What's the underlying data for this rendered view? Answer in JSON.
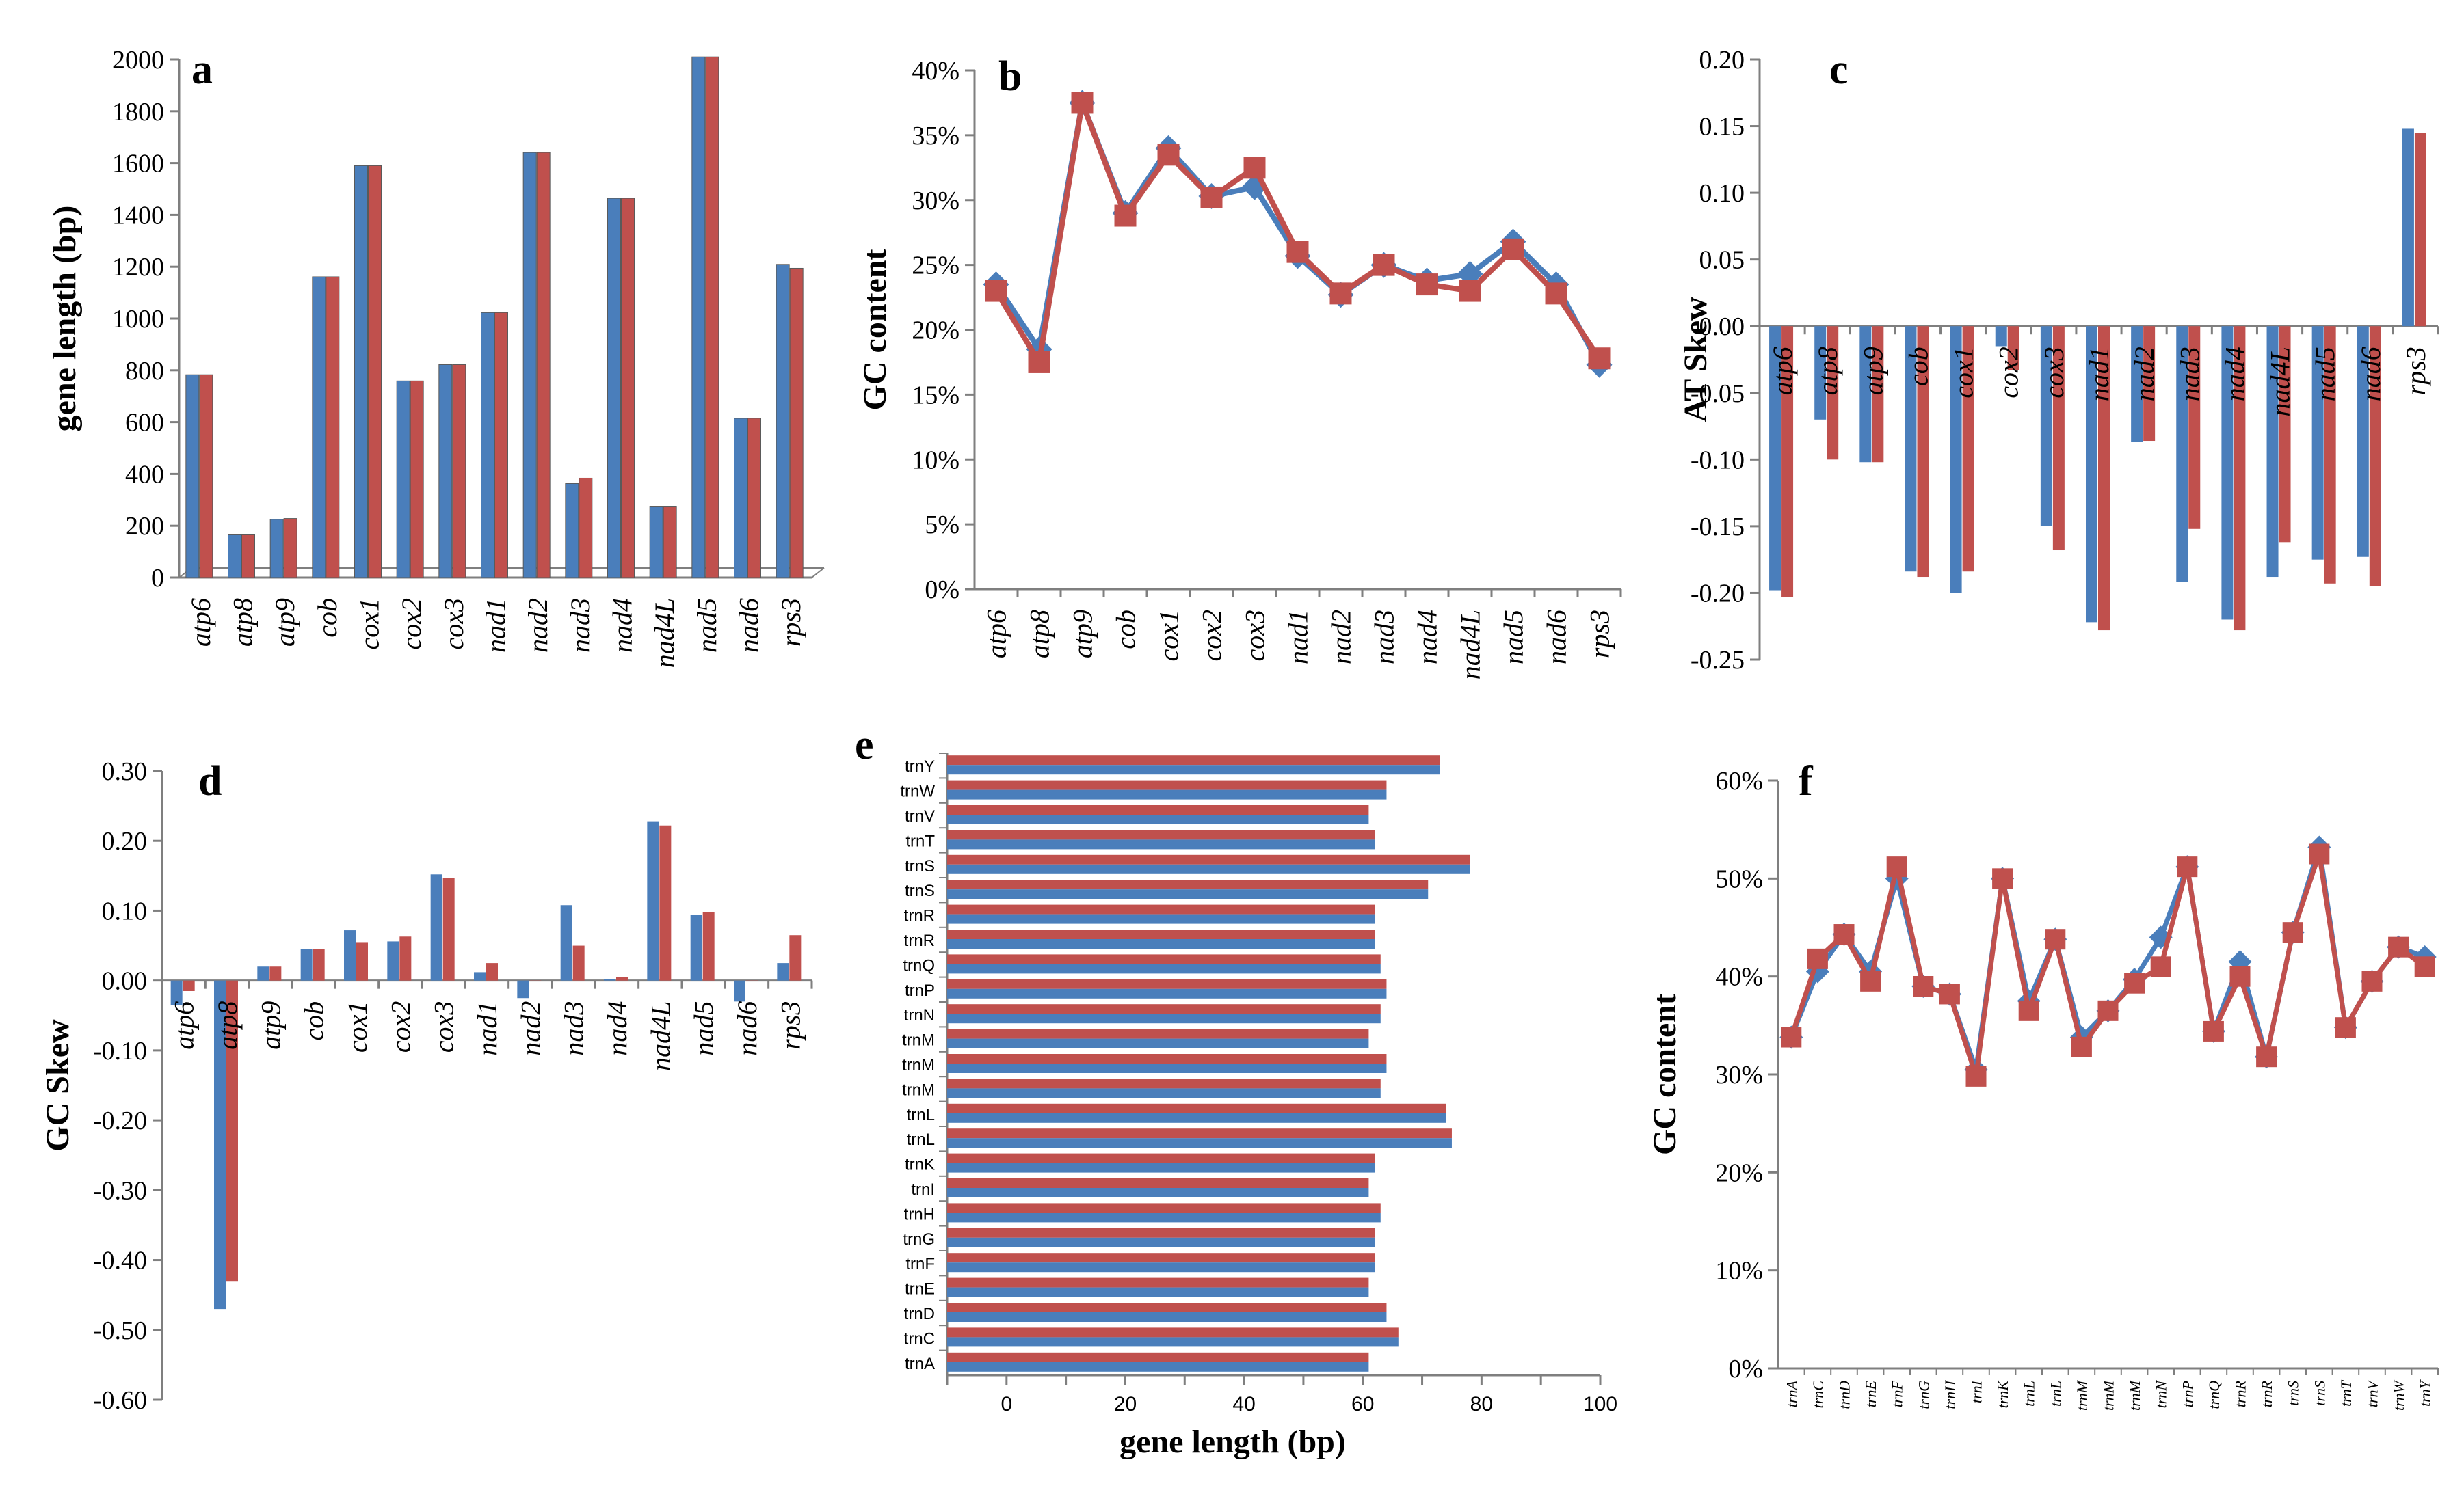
{
  "colors": {
    "series1": "#4a7ebb",
    "series2": "#c0504d",
    "axis": "#7f7f7f"
  },
  "chart_data": [
    {
      "type": "bar",
      "panel_label": "a",
      "ylabel": "gene length (bp)",
      "ylim": [
        0,
        2000
      ],
      "yticks": [
        "0",
        "200",
        "400",
        "600",
        "800",
        "1000",
        "1200",
        "1400",
        "1600",
        "1800",
        "2000"
      ],
      "categories": [
        "atp6",
        "atp8",
        "atp9",
        "cob",
        "cox1",
        "cox2",
        "cox3",
        "nad1",
        "nad2",
        "nad3",
        "nad4",
        "nad4L",
        "nad5",
        "nad6",
        "rps3"
      ],
      "series": [
        {
          "values": [
            783,
            165,
            225,
            1161,
            1590,
            759,
            822,
            1023,
            1641,
            363,
            1464,
            273,
            2010,
            615,
            1209
          ]
        },
        {
          "values": [
            783,
            165,
            228,
            1161,
            1590,
            759,
            822,
            1023,
            1641,
            384,
            1464,
            273,
            2010,
            615,
            1194
          ]
        }
      ]
    },
    {
      "type": "line",
      "panel_label": "b",
      "ylabel": "GC content",
      "ylim": [
        0,
        40
      ],
      "yticks": [
        "0%",
        "5%",
        "10%",
        "15%",
        "20%",
        "25%",
        "30%",
        "35%",
        "40%"
      ],
      "categories": [
        "atp6",
        "atp8",
        "atp9",
        "cob",
        "cox1",
        "cox2",
        "cox3",
        "nad1",
        "nad2",
        "nad3",
        "nad4",
        "nad4L",
        "nad5",
        "nad6",
        "rps3"
      ],
      "series": [
        {
          "values": [
            23.5,
            18.5,
            37.5,
            29.0,
            34.0,
            30.3,
            31.0,
            25.7,
            22.7,
            25.0,
            23.8,
            24.3,
            26.8,
            23.5,
            17.3
          ]
        },
        {
          "values": [
            23.0,
            17.5,
            37.5,
            28.8,
            33.5,
            30.2,
            32.5,
            26.0,
            22.8,
            25.0,
            23.5,
            23.0,
            26.2,
            22.8,
            17.8
          ]
        }
      ]
    },
    {
      "type": "bar",
      "panel_label": "c",
      "ylabel": "AT Skew",
      "ylim": [
        -0.25,
        0.2
      ],
      "yticks": [
        "-0.25",
        "-0.20",
        "-0.15",
        "-0.10",
        "-0.05",
        "0.00",
        "0.05",
        "0.10",
        "0.15",
        "0.20"
      ],
      "categories": [
        "atp6",
        "atp8",
        "atp9",
        "cob",
        "cox1",
        "cox2",
        "cox3",
        "nad1",
        "nad2",
        "nad3",
        "nad4",
        "nad4L",
        "nad5",
        "nad6",
        "rps3"
      ],
      "series": [
        {
          "values": [
            -0.198,
            -0.07,
            -0.102,
            -0.184,
            -0.2,
            -0.015,
            -0.15,
            -0.222,
            -0.087,
            -0.192,
            -0.22,
            -0.188,
            -0.175,
            -0.173,
            0.148
          ]
        },
        {
          "values": [
            -0.203,
            -0.1,
            -0.102,
            -0.188,
            -0.184,
            -0.033,
            -0.168,
            -0.228,
            -0.086,
            -0.152,
            -0.228,
            -0.162,
            -0.193,
            -0.195,
            0.145
          ]
        }
      ]
    },
    {
      "type": "bar",
      "panel_label": "d",
      "ylabel": "GC Skew",
      "ylim": [
        -0.6,
        0.3
      ],
      "yticks": [
        "-0.60",
        "-0.50",
        "-0.40",
        "-0.30",
        "-0.20",
        "-0.10",
        "0.00",
        "0.10",
        "0.20",
        "0.30"
      ],
      "categories": [
        "atp6",
        "atp8",
        "atp9",
        "cob",
        "cox1",
        "cox2",
        "cox3",
        "nad1",
        "nad2",
        "nad3",
        "nad4",
        "nad4L",
        "nad5",
        "nad6",
        "rps3"
      ],
      "series": [
        {
          "values": [
            -0.035,
            -0.47,
            0.02,
            0.045,
            0.072,
            0.056,
            0.152,
            0.012,
            -0.025,
            0.108,
            0.002,
            0.228,
            0.094,
            -0.03,
            0.025
          ]
        },
        {
          "values": [
            -0.015,
            -0.43,
            0.02,
            0.045,
            0.055,
            0.063,
            0.147,
            0.025,
            0.0,
            0.05,
            0.005,
            0.222,
            0.098,
            0.0,
            0.065
          ]
        }
      ]
    },
    {
      "type": "bar",
      "orientation": "horizontal",
      "panel_label": "e",
      "xlabel": "gene length (bp)",
      "xlim": [
        -10,
        100
      ],
      "xticks": [
        "0",
        "20",
        "40",
        "60",
        "80",
        "100"
      ],
      "categories": [
        "trnA",
        "trnC",
        "trnD",
        "trnE",
        "trnF",
        "trnG",
        "trnH",
        "trnI",
        "trnK",
        "trnL",
        "trnL",
        "trnM",
        "trnM",
        "trnM",
        "trnN",
        "trnP",
        "trnQ",
        "trnR",
        "trnR",
        "trnS",
        "trnS",
        "trnT",
        "trnV",
        "trnW",
        "trnY"
      ],
      "series": [
        {
          "values": [
            61,
            66,
            64,
            61,
            62,
            62,
            63,
            61,
            62,
            75,
            74,
            63,
            64,
            61,
            63,
            64,
            63,
            62,
            62,
            71,
            78,
            62,
            61,
            64,
            73
          ]
        },
        {
          "values": [
            61,
            66,
            64,
            61,
            62,
            62,
            63,
            61,
            62,
            75,
            74,
            63,
            64,
            61,
            63,
            64,
            63,
            62,
            62,
            71,
            78,
            62,
            61,
            64,
            73
          ]
        }
      ]
    },
    {
      "type": "line",
      "panel_label": "f",
      "ylabel": "GC content",
      "ylim": [
        0,
        60
      ],
      "yticks": [
        "0%",
        "10%",
        "20%",
        "30%",
        "40%",
        "50%",
        "60%"
      ],
      "categories": [
        "trnA",
        "trnC",
        "trnD",
        "trnE",
        "trnF",
        "trnG",
        "trnH",
        "trnI",
        "trnK",
        "trnL",
        "trnL",
        "trnM",
        "trnM",
        "trnM",
        "trnN",
        "trnP",
        "trnQ",
        "trnR",
        "trnR",
        "trnS",
        "trnS",
        "trnT",
        "trnV",
        "trnW",
        "trnY"
      ],
      "series": [
        {
          "values": [
            33.8,
            40.5,
            44.3,
            40.5,
            50.0,
            39.0,
            38.2,
            30.5,
            50.0,
            37.5,
            43.8,
            33.8,
            36.5,
            39.7,
            44.0,
            51.2,
            34.4,
            41.5,
            31.8,
            44.5,
            53.2,
            34.8,
            39.5,
            43.0,
            42.0
          ]
        },
        {
          "values": [
            33.8,
            41.8,
            44.3,
            39.5,
            51.2,
            39.0,
            38.2,
            29.8,
            50.0,
            36.5,
            43.8,
            32.8,
            36.5,
            39.3,
            41.0,
            51.2,
            34.4,
            40.0,
            31.8,
            44.5,
            52.5,
            34.8,
            39.5,
            43.0,
            41.0
          ]
        }
      ]
    }
  ]
}
